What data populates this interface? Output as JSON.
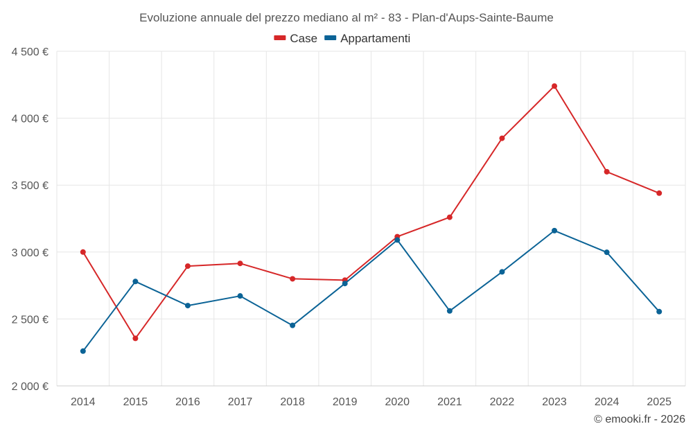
{
  "chart_data": {
    "type": "line",
    "title": "Evoluzione annuale del prezzo mediano al m² - 83 - Plan-d'Aups-Sainte-Baume",
    "categories": [
      "2014",
      "2015",
      "2016",
      "2017",
      "2018",
      "2019",
      "2020",
      "2021",
      "2022",
      "2023",
      "2024",
      "2025"
    ],
    "y_ticks": [
      2000,
      2500,
      3000,
      3500,
      4000,
      4500
    ],
    "y_tick_labels": [
      "2 000 €",
      "2 500 €",
      "3 000 €",
      "3 500 €",
      "4 000 €",
      "4 500 €"
    ],
    "ylim": [
      2000,
      4500
    ],
    "grid": true,
    "legend_position": "top-center",
    "series": [
      {
        "name": "Case",
        "color": "#d62728",
        "values": [
          3000,
          2355,
          2895,
          2915,
          2800,
          2790,
          3115,
          3260,
          3850,
          4240,
          3600,
          3440
        ]
      },
      {
        "name": "Appartamenti",
        "color": "#0b6396",
        "values": [
          2260,
          2780,
          2600,
          2672,
          2452,
          2765,
          3090,
          2560,
          2852,
          3160,
          2998,
          2555
        ]
      }
    ],
    "credit": "© emooki.fr - 2026"
  }
}
